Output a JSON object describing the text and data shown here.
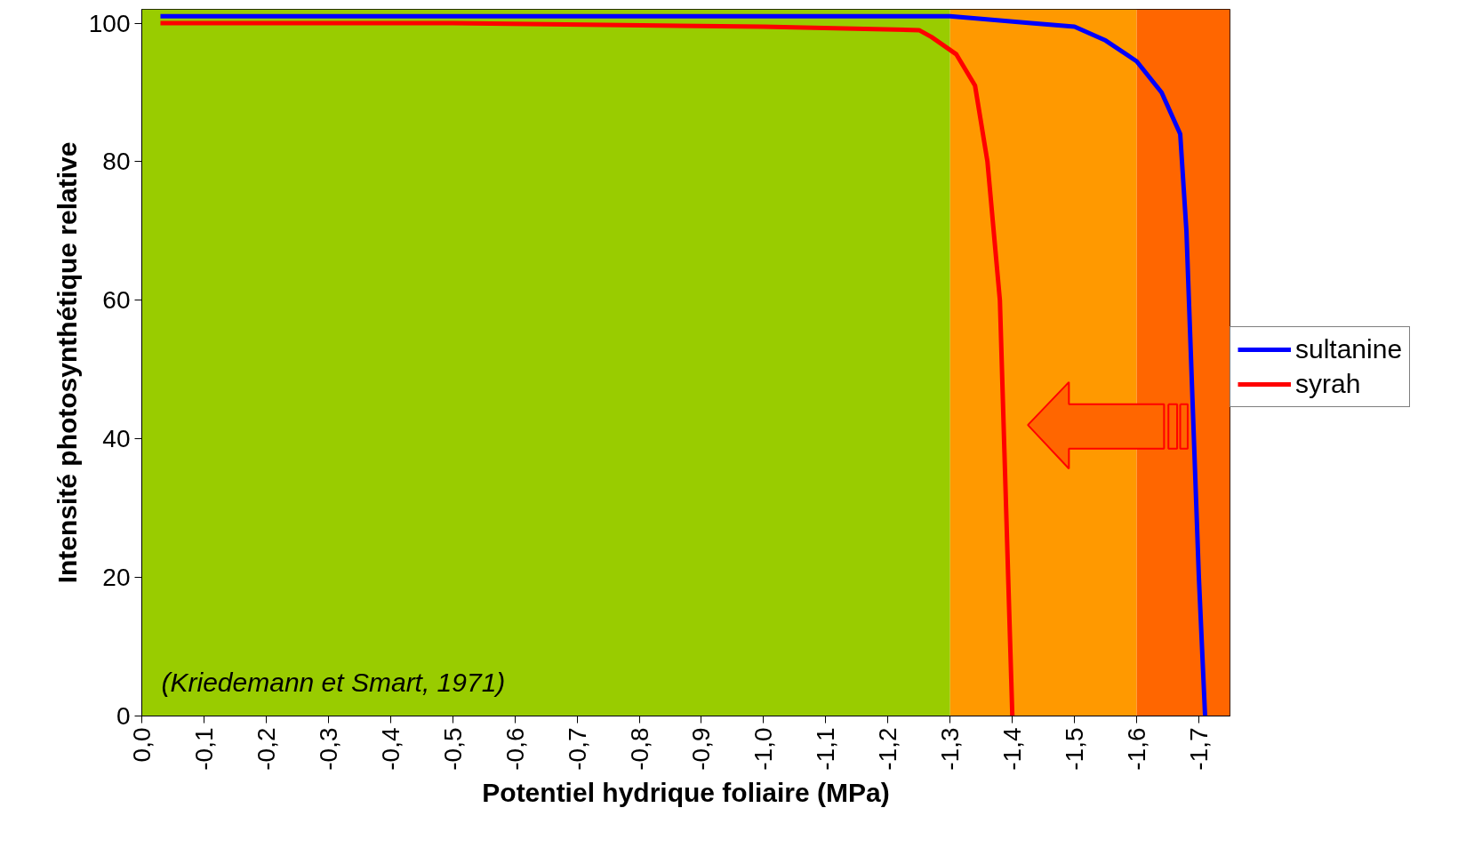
{
  "chart_data": {
    "type": "line",
    "xlabel": "Potentiel hydrique foliaire (MPa)",
    "ylabel": "Intensité photosynthétique relative",
    "xlim": [
      0,
      -1.75
    ],
    "xticks": [
      {
        "value": 0,
        "label": "0,0"
      },
      {
        "value": -0.1,
        "label": "-0,1"
      },
      {
        "value": -0.2,
        "label": "-0,2"
      },
      {
        "value": -0.3,
        "label": "-0,3"
      },
      {
        "value": -0.4,
        "label": "-0,4"
      },
      {
        "value": -0.5,
        "label": "-0,5"
      },
      {
        "value": -0.6,
        "label": "-0,6"
      },
      {
        "value": -0.7,
        "label": "-0,7"
      },
      {
        "value": -0.8,
        "label": "-0,8"
      },
      {
        "value": -0.9,
        "label": "-0,9"
      },
      {
        "value": -1.0,
        "label": "-1,0"
      },
      {
        "value": -1.1,
        "label": "-1,1"
      },
      {
        "value": -1.2,
        "label": "-1,2"
      },
      {
        "value": -1.3,
        "label": "-1,3"
      },
      {
        "value": -1.4,
        "label": "-1,4"
      },
      {
        "value": -1.5,
        "label": "-1,5"
      },
      {
        "value": -1.6,
        "label": "-1,6"
      },
      {
        "value": -1.7,
        "label": "-1,7"
      }
    ],
    "ylim": [
      0,
      102
    ],
    "yticks": [
      0,
      20,
      40,
      60,
      80,
      100
    ],
    "grid": false,
    "legend": "right",
    "bands": [
      {
        "axis": "x",
        "from": 0,
        "to": -1.3,
        "color": "#99cc00"
      },
      {
        "axis": "x",
        "from": -1.3,
        "to": -1.6,
        "color": "#ff9900"
      },
      {
        "axis": "x",
        "from": -1.6,
        "to": -1.75,
        "color": "#ff6600"
      }
    ],
    "series": [
      {
        "name": "sultanine",
        "color": "#0000ff",
        "x": [
          -0.03,
          -0.5,
          -1.0,
          -1.3,
          -1.43,
          -1.5,
          -1.55,
          -1.6,
          -1.64,
          -1.67,
          -1.68,
          -1.69,
          -1.7,
          -1.71
        ],
        "values": [
          101,
          101,
          101,
          101,
          100,
          99.5,
          97.5,
          94.5,
          90,
          84,
          70,
          45,
          20,
          0
        ]
      },
      {
        "name": "syrah",
        "color": "#ff0000",
        "x": [
          -0.03,
          -0.5,
          -1.0,
          -1.25,
          -1.27,
          -1.31,
          -1.34,
          -1.36,
          -1.38,
          -1.39,
          -1.4
        ],
        "values": [
          100,
          100,
          99.5,
          99,
          98,
          95.5,
          91,
          80,
          60,
          30,
          0
        ]
      }
    ],
    "annotations": [
      "(Kriedemann et Smart, 1971)"
    ]
  }
}
